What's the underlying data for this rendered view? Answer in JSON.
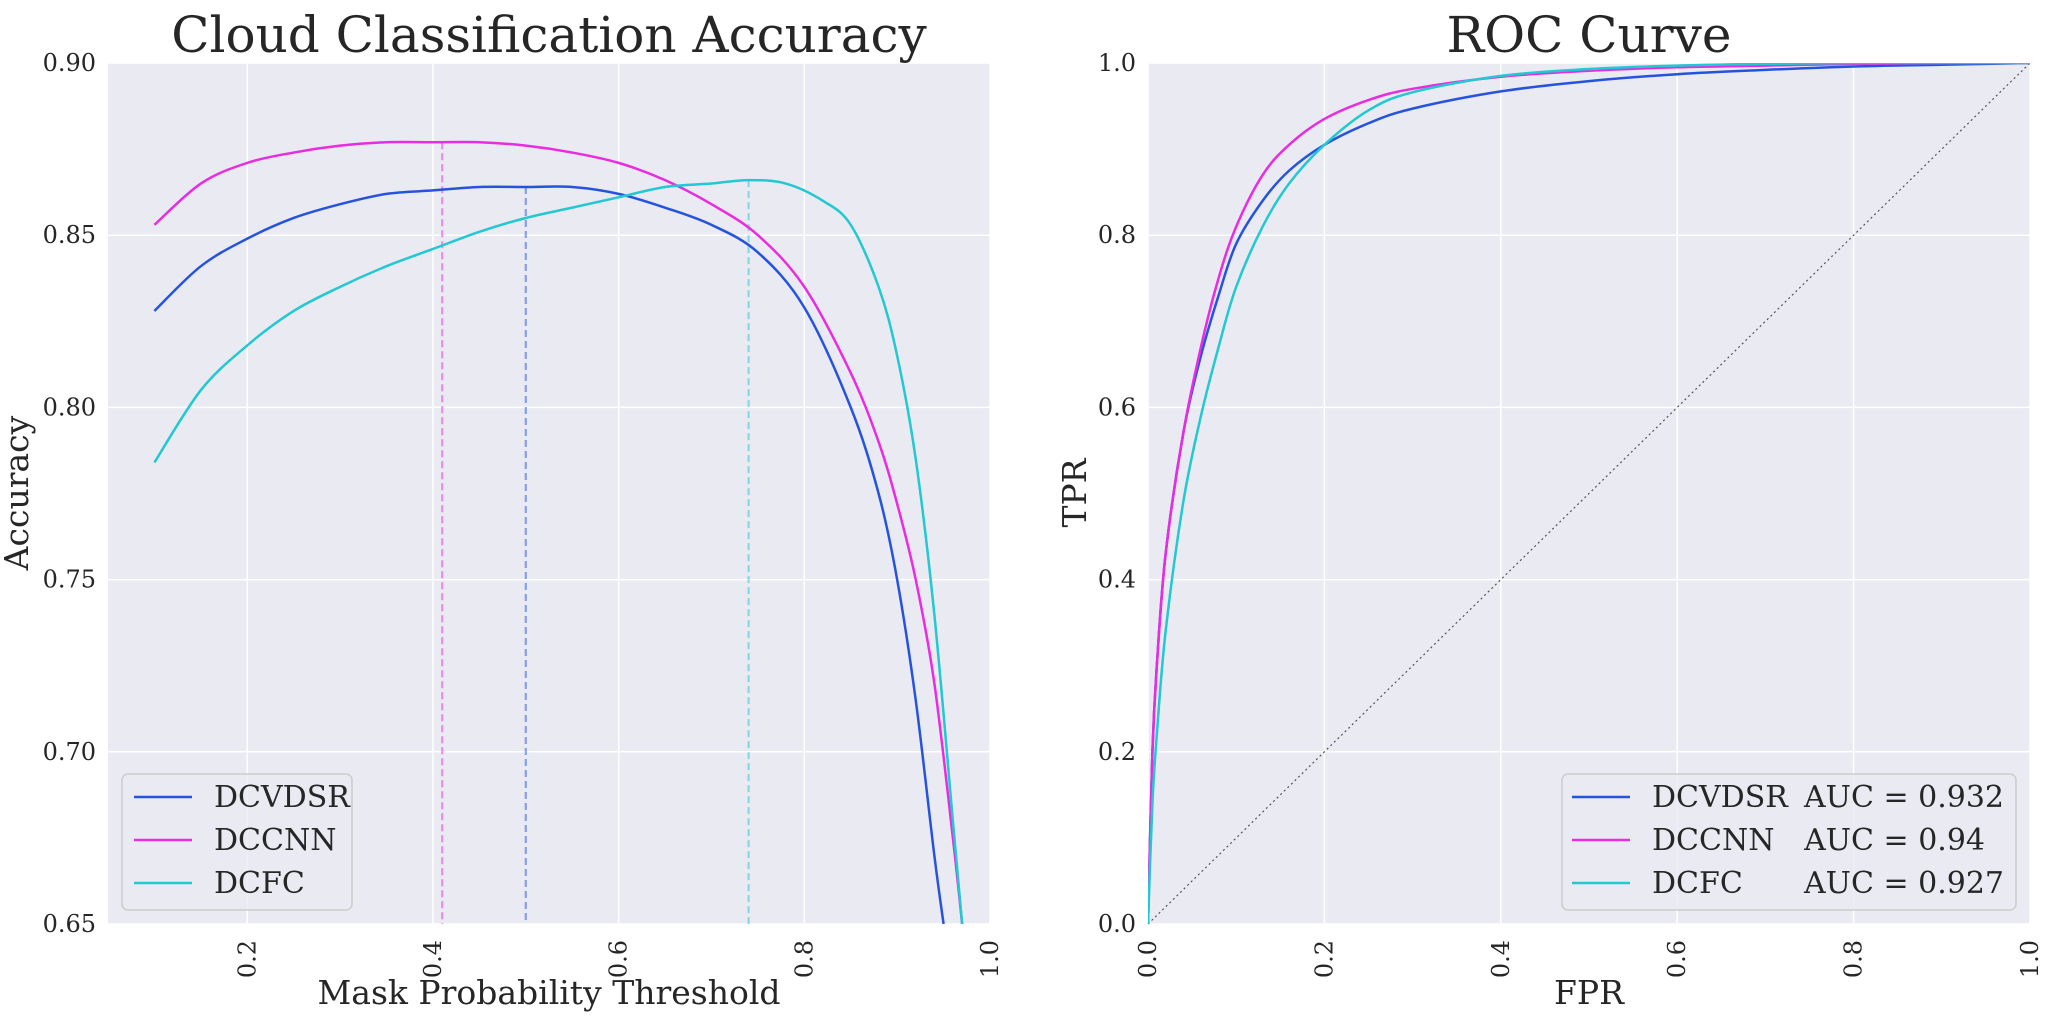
{
  "chart_data": [
    {
      "type": "line",
      "title": "Cloud Classification Accuracy",
      "xlabel": "Mask Probability Threshold",
      "ylabel": "Accuracy",
      "xlim": [
        0.05,
        1.0
      ],
      "ylim": [
        0.65,
        0.9
      ],
      "xticks": [
        "0.2",
        "0.4",
        "0.6",
        "0.8",
        "1.0"
      ],
      "yticks": [
        "0.90",
        "0.85",
        "0.80",
        "0.75",
        "0.70",
        "0.65"
      ],
      "legend": "lower-left",
      "grid": true,
      "series": [
        {
          "name": "DCVDSR",
          "color": "#2653de",
          "x": [
            0.1,
            0.15,
            0.2,
            0.25,
            0.3,
            0.35,
            0.4,
            0.45,
            0.5,
            0.55,
            0.6,
            0.65,
            0.7,
            0.75,
            0.8,
            0.85,
            0.88,
            0.9,
            0.92,
            0.94,
            0.95
          ],
          "y": [
            0.828,
            0.841,
            0.849,
            0.855,
            0.859,
            0.862,
            0.863,
            0.864,
            0.864,
            0.864,
            0.862,
            0.858,
            0.853,
            0.845,
            0.829,
            0.8,
            0.775,
            0.75,
            0.715,
            0.67,
            0.65
          ],
          "best_threshold": 0.5
        },
        {
          "name": "DCCNN",
          "color": "#e82ce0",
          "x": [
            0.1,
            0.15,
            0.2,
            0.25,
            0.3,
            0.35,
            0.4,
            0.45,
            0.5,
            0.55,
            0.6,
            0.65,
            0.7,
            0.75,
            0.8,
            0.85,
            0.88,
            0.9,
            0.92,
            0.94,
            0.96,
            0.97
          ],
          "y": [
            0.853,
            0.865,
            0.871,
            0.874,
            0.876,
            0.877,
            0.877,
            0.877,
            0.876,
            0.874,
            0.871,
            0.866,
            0.859,
            0.85,
            0.835,
            0.81,
            0.79,
            0.772,
            0.75,
            0.72,
            0.675,
            0.65
          ],
          "best_threshold": 0.41
        },
        {
          "name": "DCFC",
          "color": "#22c8d2",
          "x": [
            0.1,
            0.15,
            0.2,
            0.25,
            0.3,
            0.35,
            0.4,
            0.45,
            0.5,
            0.55,
            0.6,
            0.65,
            0.7,
            0.74,
            0.78,
            0.82,
            0.85,
            0.88,
            0.9,
            0.92,
            0.94,
            0.96,
            0.97
          ],
          "y": [
            0.784,
            0.805,
            0.818,
            0.828,
            0.835,
            0.841,
            0.846,
            0.851,
            0.855,
            0.858,
            0.861,
            0.864,
            0.865,
            0.866,
            0.865,
            0.86,
            0.853,
            0.835,
            0.815,
            0.785,
            0.74,
            0.68,
            0.65
          ],
          "best_threshold": 0.74
        }
      ]
    },
    {
      "type": "line",
      "title": "ROC Curve",
      "xlabel": "FPR",
      "ylabel": "TPR",
      "xlim": [
        0.0,
        1.0
      ],
      "ylim": [
        0.0,
        1.0
      ],
      "xticks": [
        "0.0",
        "0.2",
        "0.4",
        "0.6",
        "0.8",
        "1.0"
      ],
      "yticks": [
        "1.0",
        "0.8",
        "0.6",
        "0.4",
        "0.2",
        "0.0"
      ],
      "legend": "lower-right",
      "grid": true,
      "diagonal": true,
      "series": [
        {
          "name": "DCVDSR",
          "auc_label": "AUC = 0.932",
          "color": "#2653de",
          "x": [
            0,
            0.005,
            0.01,
            0.02,
            0.04,
            0.06,
            0.08,
            0.1,
            0.13,
            0.16,
            0.2,
            0.25,
            0.3,
            0.4,
            0.5,
            0.6,
            0.7,
            0.8,
            0.9,
            1.0
          ],
          "y": [
            0,
            0.2,
            0.3,
            0.43,
            0.57,
            0.66,
            0.73,
            0.79,
            0.84,
            0.875,
            0.905,
            0.93,
            0.947,
            0.967,
            0.979,
            0.987,
            0.992,
            0.996,
            0.998,
            1.0
          ]
        },
        {
          "name": "DCCNN",
          "auc_label": "AUC = 0.94",
          "color": "#e82ce0",
          "x": [
            0,
            0.005,
            0.01,
            0.02,
            0.04,
            0.06,
            0.08,
            0.1,
            0.13,
            0.16,
            0.2,
            0.25,
            0.3,
            0.4,
            0.5,
            0.6,
            0.7,
            0.8,
            0.9,
            1.0
          ],
          "y": [
            0,
            0.2,
            0.3,
            0.43,
            0.57,
            0.67,
            0.75,
            0.81,
            0.87,
            0.905,
            0.935,
            0.957,
            0.97,
            0.984,
            0.991,
            0.995,
            0.997,
            0.999,
            1.0,
            1.0
          ]
        },
        {
          "name": "DCFC",
          "auc_label": "AUC = 0.927",
          "color": "#22c8d2",
          "x": [
            0,
            0.005,
            0.01,
            0.02,
            0.04,
            0.06,
            0.08,
            0.1,
            0.13,
            0.16,
            0.2,
            0.25,
            0.3,
            0.4,
            0.5,
            0.6,
            0.7,
            0.8,
            0.9,
            1.0
          ],
          "y": [
            0,
            0.14,
            0.22,
            0.34,
            0.49,
            0.59,
            0.67,
            0.74,
            0.81,
            0.86,
            0.905,
            0.945,
            0.966,
            0.985,
            0.993,
            0.997,
            0.999,
            1.0,
            1.0,
            1.0
          ]
        }
      ]
    }
  ]
}
